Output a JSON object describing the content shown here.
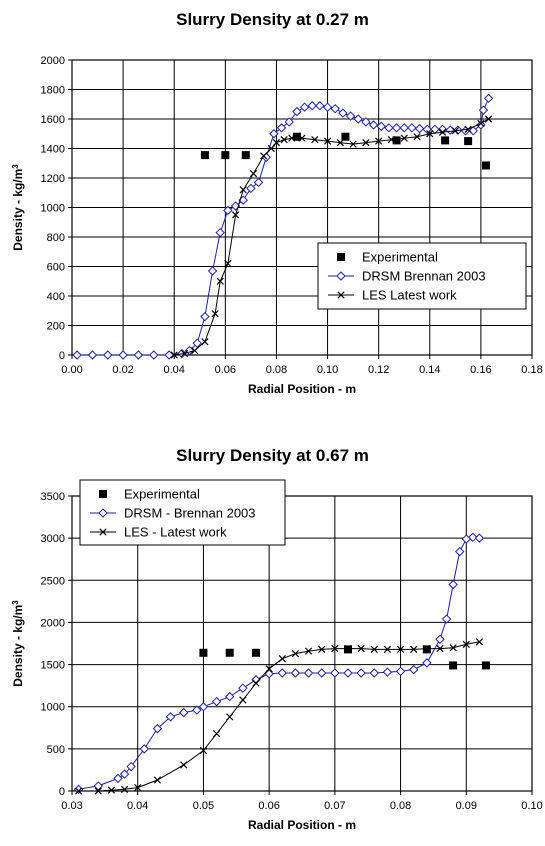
{
  "chart_data": [
    {
      "type": "scatter",
      "title": "Slurry Density at 0.27 m",
      "xlabel": "Radial Position - m",
      "ylabel": "Density - kg/m",
      "ylabel_sup": "3",
      "xlim": [
        0,
        0.18
      ],
      "ylim": [
        0,
        2000
      ],
      "xticks": [
        0,
        0.02,
        0.04,
        0.06,
        0.08,
        0.1,
        0.12,
        0.14,
        0.16,
        0.18
      ],
      "xtick_labels": [
        "0.00",
        "0.02",
        "0.04",
        "0.06",
        "0.08",
        "0.10",
        "0.12",
        "0.14",
        "0.16",
        "0.18"
      ],
      "yticks": [
        0,
        200,
        400,
        600,
        800,
        1000,
        1200,
        1400,
        1600,
        1800,
        2000
      ],
      "ytick_labels": [
        "0",
        "200",
        "400",
        "600",
        "800",
        "1000",
        "1200",
        "1400",
        "1600",
        "1800",
        "2000"
      ],
      "grid": true,
      "legend": "lower-right",
      "series": [
        {
          "name": "Experimental",
          "marker": "square",
          "line": false,
          "x": [
            0.052,
            0.06,
            0.068,
            0.088,
            0.107,
            0.127,
            0.146,
            0.155,
            0.162
          ],
          "y": [
            1355,
            1355,
            1355,
            1480,
            1480,
            1455,
            1455,
            1450,
            1285
          ]
        },
        {
          "name": "DRSM Brennan 2003",
          "marker": "diamond",
          "line": true,
          "x": [
            0.002,
            0.008,
            0.014,
            0.02,
            0.026,
            0.032,
            0.038,
            0.043,
            0.046,
            0.049,
            0.052,
            0.055,
            0.058,
            0.061,
            0.064,
            0.067,
            0.07,
            0.073,
            0.076,
            0.079,
            0.082,
            0.085,
            0.088,
            0.091,
            0.094,
            0.097,
            0.1,
            0.103,
            0.106,
            0.109,
            0.112,
            0.115,
            0.118,
            0.121,
            0.124,
            0.127,
            0.13,
            0.133,
            0.136,
            0.139,
            0.142,
            0.145,
            0.148,
            0.151,
            0.154,
            0.157,
            0.16,
            0.161,
            0.163
          ],
          "y": [
            0,
            0,
            0,
            0,
            0,
            0,
            0,
            10,
            30,
            80,
            260,
            570,
            830,
            980,
            1010,
            1050,
            1130,
            1170,
            1340,
            1500,
            1540,
            1580,
            1650,
            1680,
            1690,
            1690,
            1680,
            1670,
            1640,
            1620,
            1600,
            1580,
            1560,
            1550,
            1540,
            1540,
            1540,
            1540,
            1535,
            1530,
            1530,
            1530,
            1525,
            1525,
            1520,
            1520,
            1560,
            1660,
            1740
          ]
        },
        {
          "name": "LES Latest work",
          "marker": "x",
          "line": true,
          "x": [
            0.04,
            0.044,
            0.048,
            0.052,
            0.056,
            0.058,
            0.061,
            0.064,
            0.067,
            0.071,
            0.075,
            0.078,
            0.08,
            0.083,
            0.086,
            0.09,
            0.095,
            0.1,
            0.105,
            0.11,
            0.115,
            0.12,
            0.125,
            0.13,
            0.135,
            0.14,
            0.145,
            0.15,
            0.155,
            0.16,
            0.163
          ],
          "y": [
            0,
            10,
            30,
            90,
            280,
            500,
            620,
            950,
            1120,
            1230,
            1350,
            1400,
            1440,
            1460,
            1470,
            1470,
            1460,
            1450,
            1440,
            1430,
            1440,
            1450,
            1460,
            1470,
            1480,
            1500,
            1510,
            1520,
            1530,
            1570,
            1600
          ]
        }
      ]
    },
    {
      "type": "scatter",
      "title": "Slurry Density at 0.67 m",
      "xlabel": "Radial Position - m",
      "ylabel": "Density - kg/m",
      "ylabel_sup": "3",
      "xlim": [
        0.03,
        0.1
      ],
      "ylim": [
        0,
        3500
      ],
      "xticks": [
        0.03,
        0.04,
        0.05,
        0.06,
        0.07,
        0.08,
        0.09,
        0.1
      ],
      "xtick_labels": [
        "0.03",
        "0.04",
        "0.05",
        "0.06",
        "0.07",
        "0.08",
        "0.09",
        "0.10"
      ],
      "yticks": [
        0,
        500,
        1000,
        1500,
        2000,
        2500,
        3000,
        3500
      ],
      "ytick_labels": [
        "0",
        "500",
        "1000",
        "1500",
        "2000",
        "2500",
        "3000",
        "3500"
      ],
      "grid": true,
      "legend": "top-left",
      "series": [
        {
          "name": "Experimental",
          "marker": "square",
          "line": false,
          "x": [
            0.05,
            0.054,
            0.058,
            0.072,
            0.084,
            0.088,
            0.093
          ],
          "y": [
            1640,
            1640,
            1640,
            1680,
            1680,
            1490,
            1490
          ]
        },
        {
          "name": "DRSM - Brennan 2003",
          "marker": "diamond",
          "line": true,
          "x": [
            0.031,
            0.034,
            0.037,
            0.038,
            0.039,
            0.041,
            0.043,
            0.045,
            0.047,
            0.049,
            0.05,
            0.052,
            0.054,
            0.056,
            0.058,
            0.06,
            0.062,
            0.064,
            0.066,
            0.068,
            0.07,
            0.072,
            0.074,
            0.076,
            0.078,
            0.08,
            0.082,
            0.084,
            0.086,
            0.087,
            0.088,
            0.089,
            0.09,
            0.091,
            0.092
          ],
          "y": [
            20,
            60,
            150,
            200,
            290,
            500,
            740,
            880,
            930,
            960,
            1000,
            1060,
            1120,
            1220,
            1320,
            1390,
            1400,
            1400,
            1400,
            1400,
            1400,
            1400,
            1400,
            1400,
            1410,
            1420,
            1440,
            1520,
            1800,
            2040,
            2450,
            2840,
            2990,
            3010,
            3000
          ]
        },
        {
          "name": "LES - Latest work",
          "marker": "x",
          "line": true,
          "x": [
            0.031,
            0.034,
            0.036,
            0.038,
            0.04,
            0.043,
            0.047,
            0.05,
            0.052,
            0.054,
            0.056,
            0.058,
            0.06,
            0.062,
            0.064,
            0.066,
            0.068,
            0.07,
            0.072,
            0.074,
            0.076,
            0.078,
            0.08,
            0.082,
            0.084,
            0.086,
            0.088,
            0.09,
            0.092
          ],
          "y": [
            0,
            0,
            10,
            20,
            40,
            130,
            310,
            480,
            680,
            880,
            1080,
            1280,
            1450,
            1570,
            1630,
            1660,
            1680,
            1690,
            1690,
            1690,
            1680,
            1680,
            1680,
            1680,
            1690,
            1690,
            1700,
            1740,
            1770
          ]
        }
      ]
    }
  ]
}
